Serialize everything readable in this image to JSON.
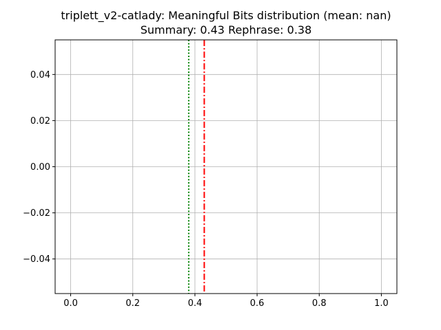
{
  "chart_data": {
    "type": "line",
    "title_line1": "triplett_v2-catlady: Meaningful Bits distribution (mean: nan)",
    "title_line2": "Summary: 0.43 Rephrase: 0.38",
    "xlabel": "",
    "ylabel": "",
    "xlim": [
      -0.05,
      1.05
    ],
    "ylim": [
      -0.055,
      0.055
    ],
    "grid": true,
    "x_ticks": [
      0.0,
      0.2,
      0.4,
      0.6,
      0.8,
      1.0
    ],
    "x_tick_labels": [
      "0.0",
      "0.2",
      "0.4",
      "0.6",
      "0.8",
      "1.0"
    ],
    "y_ticks": [
      0.04,
      0.02,
      0.0,
      -0.02,
      -0.04
    ],
    "y_tick_labels": [
      "0.04",
      "0.02",
      "0.00",
      "−0.02",
      "−0.04"
    ],
    "vertical_lines": [
      {
        "x": 0.43,
        "color": "#ff0000",
        "style": "dashdot"
      },
      {
        "x": 0.38,
        "color": "#008000",
        "style": "dotted"
      }
    ]
  }
}
